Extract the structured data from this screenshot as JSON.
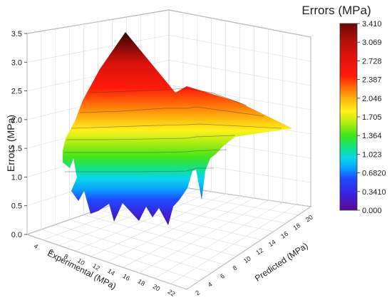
{
  "chart_data": {
    "type": "surface",
    "legend_title": "Errors (MPa)",
    "xlabel": "Experimental (MPa)",
    "ylabel": "Predicted (MPa)",
    "zlabel": "Errors (MPa)",
    "x_ticks": [
      "4",
      "6",
      "8",
      "10",
      "12",
      "14",
      "16",
      "18",
      "20",
      "22"
    ],
    "y_ticks": [
      "2",
      "4",
      "6",
      "8",
      "10",
      "12",
      "14",
      "16",
      "18",
      "20"
    ],
    "z_ticks": [
      "0.0",
      "0.5",
      "1.0",
      "1.5",
      "2.0",
      "2.5",
      "3.0",
      "3.5"
    ],
    "colorbar_ticks": [
      "0.000",
      "0.3410",
      "0.6820",
      "1.023",
      "1.364",
      "1.705",
      "2.046",
      "2.387",
      "2.728",
      "3.069",
      "3.410"
    ],
    "zlim": [
      0,
      3.5
    ],
    "color_range": [
      0,
      3.41
    ],
    "grid": true,
    "legend_position": "right"
  }
}
